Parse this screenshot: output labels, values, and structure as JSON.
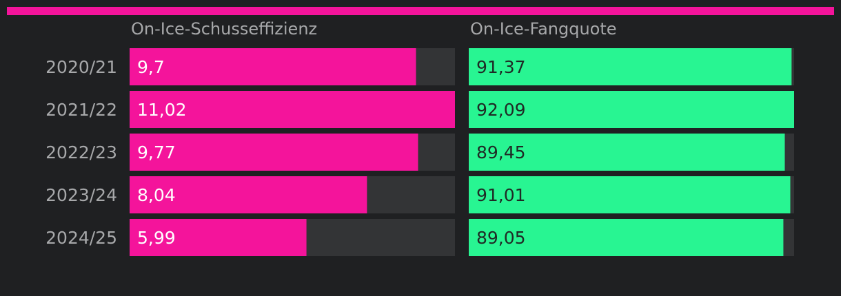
{
  "chart_data": [
    {
      "type": "bar",
      "title": "On-Ice-Schusseffizienz",
      "categories": [
        "2020/21",
        "2021/22",
        "2022/23",
        "2023/24",
        "2024/25"
      ],
      "values": [
        9.7,
        11.02,
        9.77,
        8.04,
        5.99
      ],
      "value_labels": [
        "9,7",
        "11,02",
        "9,77",
        "8,04",
        "5,99"
      ],
      "xlim": [
        0,
        11.02
      ],
      "color": "#f4149b",
      "track_color": "#333436",
      "label_color": "#ffffff"
    },
    {
      "type": "bar",
      "title": "On-Ice-Fangquote",
      "categories": [
        "2020/21",
        "2021/22",
        "2022/23",
        "2023/24",
        "2024/25"
      ],
      "values": [
        91.37,
        92.09,
        89.45,
        91.01,
        89.05
      ],
      "value_labels": [
        "91,37",
        "92,09",
        "89,45",
        "91,01",
        "89,05"
      ],
      "xlim": [
        0,
        92.09
      ],
      "color": "#28f592",
      "track_color": "#333436",
      "label_color": "#1f2a25"
    }
  ],
  "colors": {
    "background": "#1f2022",
    "accent_rule": "#f4149b",
    "category_label": "#a7a8aa",
    "panel_title": "#a7a8aa"
  }
}
